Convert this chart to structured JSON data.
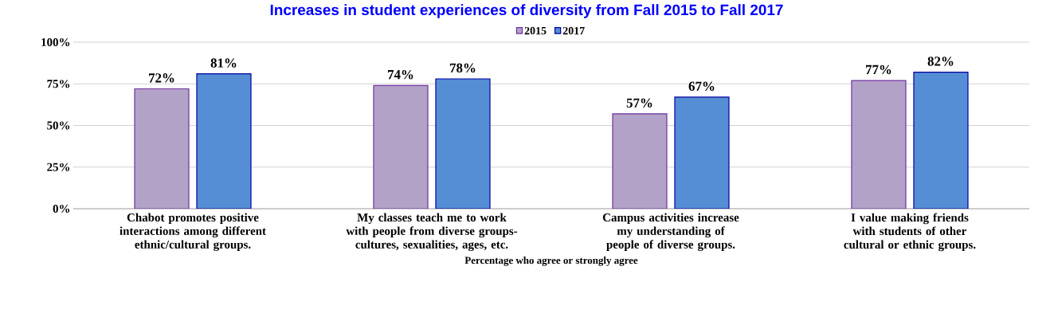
{
  "chart_data": {
    "type": "bar",
    "title": "Increases in student experiences of diversity from Fall 2015 to Fall 2017",
    "xlabel": "Percentage who agree or strongly agree",
    "categories": [
      "Chabot promotes positive interactions among different ethnic/cultural groups.",
      "My classes teach me to work with people from diverse groups-cultures, sexualities, ages, etc.",
      "Campus activities increase my understanding of people of diverse groups.",
      "I value making friends with students of other cultural or ethnic groups."
    ],
    "series": [
      {
        "name": "2015",
        "color": "#b3a2c7",
        "values": [
          72,
          74,
          57,
          77
        ],
        "value_labels": [
          "72%",
          "74%",
          "57%",
          "77%"
        ]
      },
      {
        "name": "2017",
        "color": "#558ed5",
        "values": [
          81,
          78,
          67,
          82
        ],
        "value_labels": [
          "81%",
          "78%",
          "67%",
          "82%"
        ]
      }
    ],
    "ylim": [
      0,
      100
    ],
    "yticks": [
      {
        "value": 0,
        "label": "0%"
      },
      {
        "value": 25,
        "label": "25%"
      },
      {
        "value": 50,
        "label": "50%"
      },
      {
        "value": 75,
        "label": "75%"
      },
      {
        "value": 100,
        "label": "100%"
      }
    ],
    "grid": "y",
    "legend": "top"
  }
}
